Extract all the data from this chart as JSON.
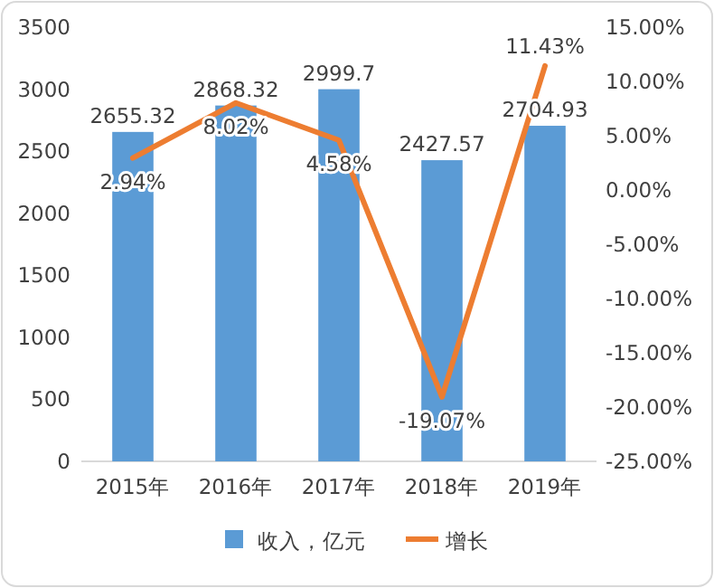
{
  "chart_data": {
    "type": "bar",
    "categories": [
      "2015年",
      "2016年",
      "2017年",
      "2018年",
      "2019年"
    ],
    "series": [
      {
        "name": "收入，亿元",
        "color": "#5b9bd5",
        "values": [
          2655.32,
          2868.32,
          2999.7,
          2427.57,
          2704.93
        ],
        "value_labels": [
          "2655.32",
          "2868.32",
          "2999.7",
          "2427.57",
          "2704.93"
        ]
      },
      {
        "name": "增长",
        "type": "line",
        "axis": "y2",
        "color": "#ed7d31",
        "values": [
          2.94,
          8.02,
          4.58,
          -19.07,
          11.43
        ],
        "value_labels": [
          "2.94%",
          "8.02%",
          "4.58%",
          "-19.07%",
          "11.43%"
        ]
      }
    ],
    "ylim": [
      0,
      3500
    ],
    "yticks": [
      0,
      500,
      1000,
      1500,
      2000,
      2500,
      3000,
      3500
    ],
    "y2lim": [
      -25,
      15
    ],
    "y2ticks": [
      {
        "value": -25,
        "label": "-25.00%"
      },
      {
        "value": -20,
        "label": "-20.00%"
      },
      {
        "value": -15,
        "label": "-15.00%"
      },
      {
        "value": -10,
        "label": "-10.00%"
      },
      {
        "value": -5,
        "label": "-5.00%"
      },
      {
        "value": 0,
        "label": "0.00%"
      },
      {
        "value": 5,
        "label": "5.00%"
      },
      {
        "value": 10,
        "label": "10.00%"
      },
      {
        "value": 15,
        "label": "15.00%"
      }
    ],
    "legend": "bottom",
    "marker": "none",
    "line_style": "solid",
    "grid": false
  }
}
